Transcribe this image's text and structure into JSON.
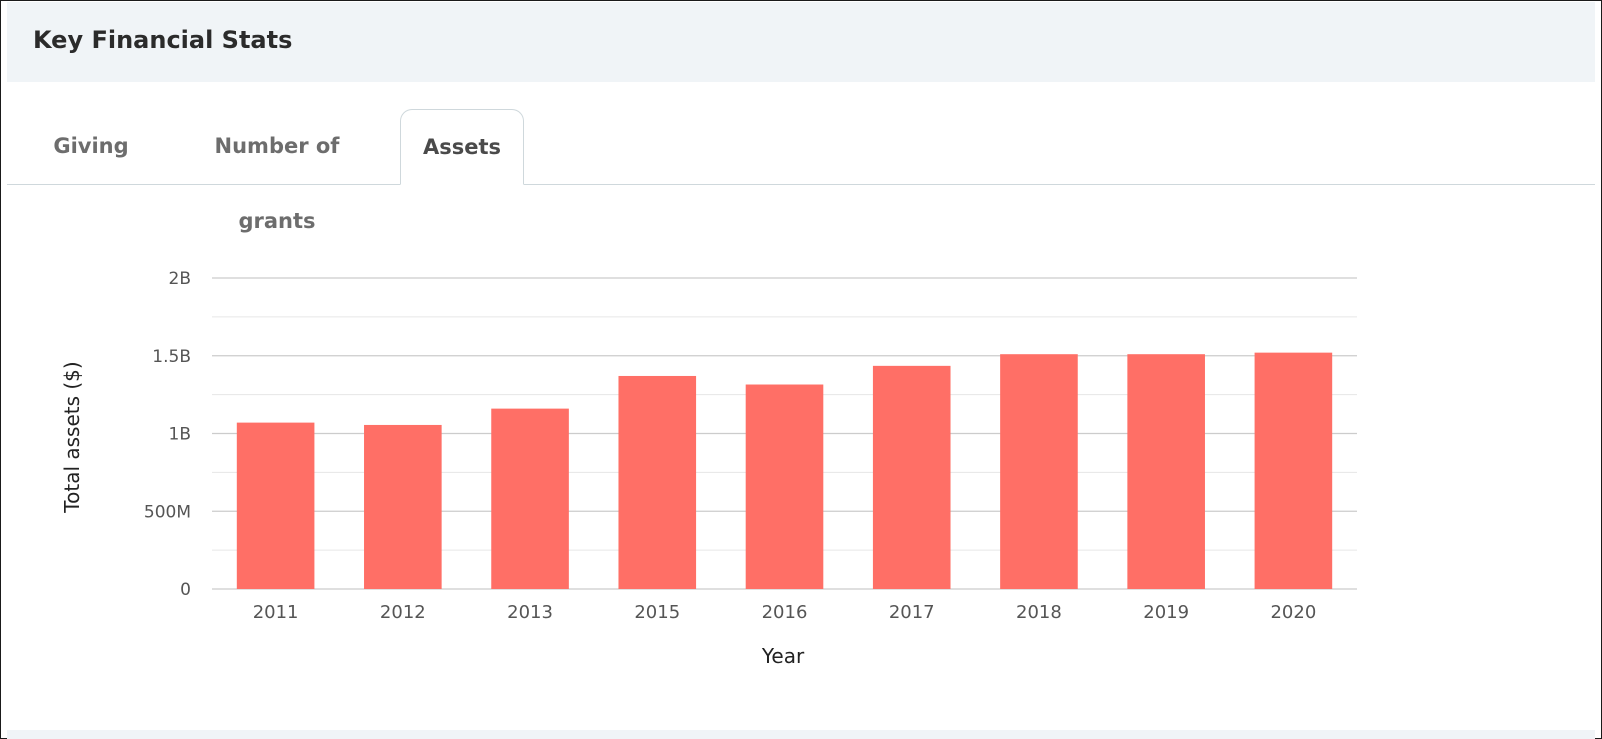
{
  "panel": {
    "title": "Key Financial Stats"
  },
  "tabs": [
    {
      "label": "Giving",
      "active": false
    },
    {
      "label": "Number of grants",
      "active": false
    },
    {
      "label": "Assets",
      "active": true
    }
  ],
  "colors": {
    "bar": "#ff6f66",
    "header_bg": "#f0f4f7",
    "grid_major": "#cccccc",
    "grid_minor": "#e6e6e6"
  },
  "chart_data": {
    "type": "bar",
    "categories": [
      "2011",
      "2012",
      "2013",
      "2015",
      "2016",
      "2017",
      "2018",
      "2019",
      "2020"
    ],
    "values": [
      1070000000,
      1055000000,
      1160000000,
      1370000000,
      1315000000,
      1435000000,
      1510000000,
      1510000000,
      1520000000
    ],
    "xlabel": "Year",
    "ylabel": "Total assets ($)",
    "ylim": [
      0,
      2000000000
    ],
    "yticks": [
      0,
      500000000,
      1000000000,
      1500000000,
      2000000000
    ],
    "ytick_labels": [
      "0",
      "500M",
      "1B",
      "1.5B",
      "2B"
    ],
    "minor_gridlines": true,
    "legend": "none"
  }
}
